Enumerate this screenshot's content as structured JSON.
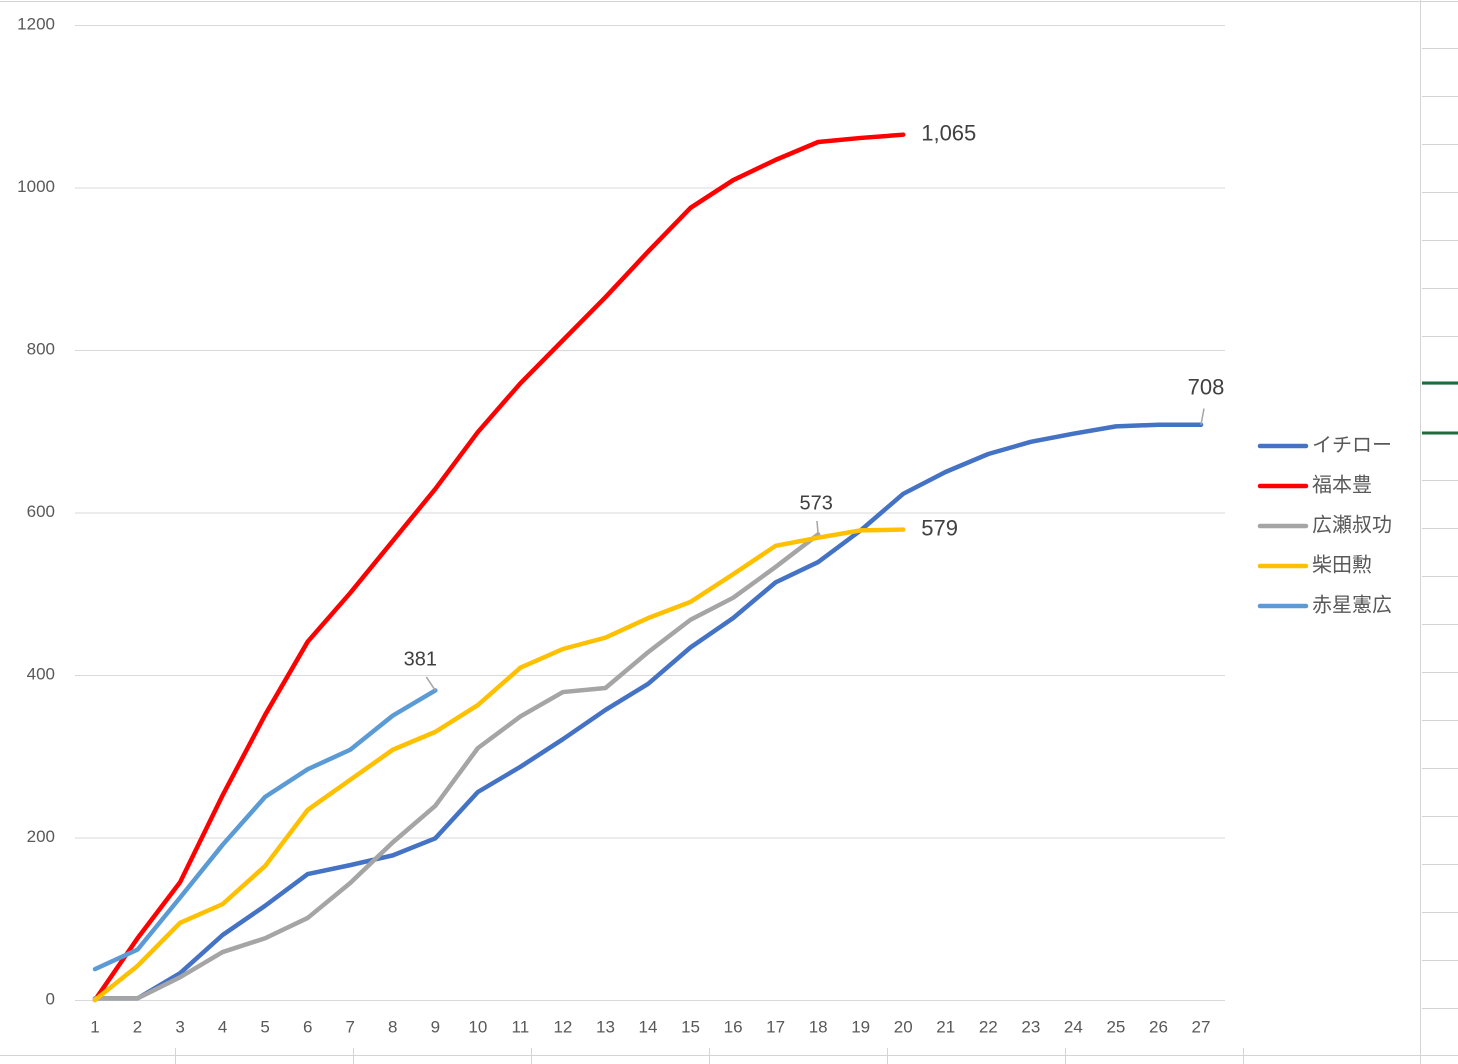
{
  "chart_data": {
    "type": "line",
    "categories": [
      1,
      2,
      3,
      4,
      5,
      6,
      7,
      8,
      9,
      10,
      11,
      12,
      13,
      14,
      15,
      16,
      17,
      18,
      19,
      20,
      21,
      22,
      23,
      24,
      25,
      26,
      27
    ],
    "ylim": [
      0,
      1200
    ],
    "yticks": [
      0,
      200,
      400,
      600,
      800,
      1000,
      1200
    ],
    "grid": true,
    "legend": "right",
    "series": [
      {
        "name": "イチロー",
        "color": "#4472c4",
        "values": [
          2,
          2,
          33,
          80,
          116,
          155,
          166,
          178,
          199,
          256,
          287,
          321,
          357,
          389,
          434,
          470,
          514,
          539,
          578,
          623,
          650,
          672,
          687,
          697,
          706,
          708,
          708
        ]
      },
      {
        "name": "福本豊",
        "color": "#ff0000",
        "values": [
          0,
          76,
          145,
          252,
          351,
          441,
          501,
          565,
          629,
          699,
          759,
          812,
          865,
          921,
          975,
          1009,
          1034,
          1056,
          1061,
          1065,
          null,
          null,
          null,
          null,
          null,
          null,
          null
        ],
        "value_labels": [
          null,
          null,
          null,
          null,
          null,
          null,
          null,
          null,
          null,
          null,
          null,
          null,
          null,
          null,
          null,
          null,
          null,
          null,
          null,
          "1,065",
          null,
          null,
          null,
          null,
          null,
          null,
          null
        ]
      },
      {
        "name": "広瀬叔功",
        "color": "#a5a5a5",
        "values": [
          2,
          2,
          28,
          59,
          76,
          101,
          144,
          194,
          239,
          310,
          349,
          379,
          384,
          428,
          468,
          495,
          533,
          573,
          null,
          null,
          null,
          null,
          null,
          null,
          null,
          null,
          null
        ]
      },
      {
        "name": "柴田勲",
        "color": "#ffc000",
        "values": [
          0,
          42,
          95,
          118,
          165,
          234,
          271,
          308,
          330,
          363,
          409,
          432,
          446,
          470,
          490,
          524,
          559,
          569,
          578,
          579,
          null,
          null,
          null,
          null,
          null,
          null,
          null
        ]
      },
      {
        "name": "赤星憲広",
        "color": "#5b9bd5",
        "values": [
          38,
          62,
          126,
          191,
          250,
          284,
          308,
          350,
          381,
          null,
          null,
          null,
          null,
          null,
          null,
          null,
          null,
          null,
          null,
          null,
          null,
          null,
          null,
          null,
          null,
          null,
          null
        ]
      }
    ]
  }
}
